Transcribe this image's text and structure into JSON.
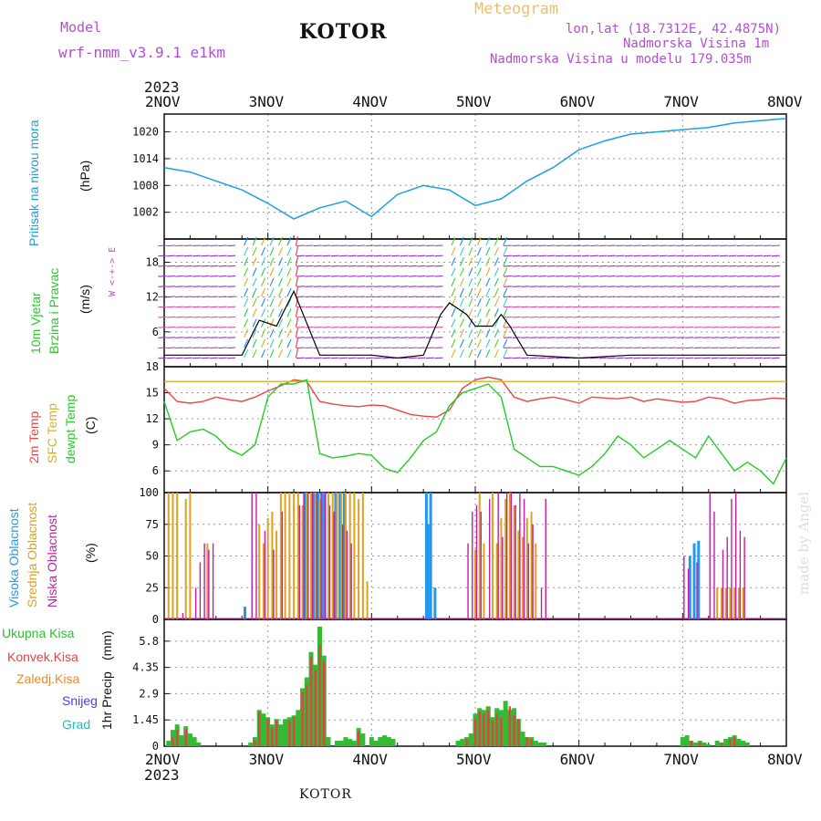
{
  "header": {
    "model_label": "Model",
    "model_name": "wrf-nmm_v3.9.1 e1km",
    "station": "KOTOR",
    "meteogram": "Meteogram",
    "lonlat": "lon,lat (18.7312E, 42.4875N)",
    "altitude": "Nadmorska Visina 1m",
    "model_altitude": "Nadmorska Visina u modelu 179.035m",
    "footer_station": "KOTOR",
    "watermark": "made by Angel"
  },
  "colors": {
    "pressure": "#1ca0e0",
    "temp2m": "#ee4444",
    "sfc": "#d8b020",
    "dewpt": "#22cc22",
    "high": "#2299ee",
    "mid": "#e0a020",
    "low": "#c020a0",
    "total": "#33bb33",
    "conv": "#dd4444",
    "frozen": "#ee8833",
    "snow": "#4444dd",
    "grad": "#22bbbb",
    "violet": "#b050d0"
  },
  "chart_data": [
    {
      "type": "line",
      "panel": "pressure",
      "ylabel": "Pritisak na nivou mora",
      "unit": "(hPa)",
      "ylim": [
        996,
        1024
      ],
      "yticks": [
        1002,
        1008,
        1014,
        1020
      ],
      "x_hours": [
        0,
        6,
        12,
        18,
        24,
        30,
        36,
        42,
        48,
        54,
        60,
        66,
        72,
        78,
        84,
        90,
        96,
        102,
        108,
        114,
        120,
        126,
        132,
        138,
        144
      ],
      "series": [
        {
          "values": [
            1012,
            1011,
            1009,
            1007,
            1004,
            1000.5,
            1003,
            1004.5,
            1001,
            1006,
            1008,
            1007,
            1003.5,
            1005,
            1009,
            1012,
            1016,
            1018,
            1019.5,
            1020,
            1020.5,
            1021,
            1022,
            1022.5,
            1023
          ]
        }
      ]
    },
    {
      "type": "line",
      "panel": "wind",
      "ylabel": "10m Vjetar Brzina i Pravac",
      "unit": "(m/s)",
      "ylim": [
        0,
        22
      ],
      "yticks": [
        6,
        12,
        18
      ],
      "compass": "W  <-+->  E",
      "x_hours": [
        0,
        6,
        12,
        18,
        20,
        22,
        26,
        30,
        36,
        40,
        48,
        54,
        60,
        64,
        66,
        70,
        72,
        76,
        78,
        80,
        84,
        96,
        108,
        120,
        132,
        144
      ],
      "series": [
        {
          "values": [
            2,
            2,
            2,
            2,
            5,
            8,
            7,
            13,
            2,
            2,
            2,
            1.5,
            2,
            9,
            11,
            9,
            7,
            7,
            9,
            7,
            2,
            1.5,
            2,
            2,
            2,
            2
          ]
        }
      ]
    },
    {
      "type": "line",
      "panel": "temperature",
      "ylabel": "2m Temp / SFC Temp / dewpt Temp",
      "unit": "(C)",
      "ylim": [
        3.5,
        18
      ],
      "yticks": [
        6,
        9,
        12,
        15,
        18
      ],
      "x_hours": [
        0,
        3,
        6,
        9,
        12,
        15,
        18,
        21,
        24,
        27,
        30,
        33,
        36,
        39,
        42,
        45,
        48,
        51,
        54,
        57,
        60,
        63,
        66,
        69,
        72,
        75,
        78,
        81,
        84,
        87,
        90,
        93,
        96,
        99,
        102,
        105,
        108,
        111,
        114,
        117,
        120,
        123,
        126,
        129,
        132,
        135,
        138,
        141,
        144
      ],
      "series": [
        {
          "name": "2m Temp",
          "values": [
            15.5,
            14,
            13.8,
            14,
            14.5,
            14.2,
            14,
            14.5,
            15.2,
            15.8,
            16.5,
            16.3,
            14,
            13.7,
            13.5,
            13.4,
            13.6,
            13.5,
            13,
            12.5,
            12.3,
            12.2,
            13,
            15.5,
            16.5,
            16.8,
            16.5,
            14.5,
            14,
            14.3,
            14.5,
            14.2,
            13.8,
            14.5,
            14.4,
            14.3,
            14.5,
            14,
            14.3,
            14.1,
            13.9,
            14,
            14.5,
            14.3,
            13.8,
            14.1,
            14.2,
            14.4,
            14.3
          ]
        },
        {
          "name": "SFC Temp",
          "values": [
            16.3,
            16.3,
            16.3,
            16.3,
            16.3,
            16.3,
            16.3,
            16.3,
            16.3,
            16.3,
            16.3,
            16.3,
            16.3,
            16.3,
            16.3,
            16.3,
            16.3,
            16.3,
            16.3,
            16.3,
            16.3,
            16.3,
            16.3,
            16.3,
            16.3,
            16.3,
            16.3,
            16.3,
            16.3,
            16.3,
            16.3,
            16.3,
            16.3,
            16.3,
            16.3,
            16.3,
            16.3,
            16.3,
            16.3,
            16.3,
            16.3,
            16.3,
            16.3,
            16.3,
            16.3,
            16.3,
            16.3,
            16.3,
            16.3
          ]
        },
        {
          "name": "dewpt Temp",
          "values": [
            14,
            9.5,
            10.5,
            10.8,
            10,
            8.5,
            7.8,
            9,
            14.5,
            16,
            16,
            16.5,
            8,
            7.5,
            7.7,
            8,
            7.8,
            6.3,
            5.8,
            7.5,
            9.5,
            10.5,
            13.5,
            15,
            15.5,
            16,
            14.5,
            8.5,
            7.5,
            6.5,
            6.5,
            6,
            5.5,
            6.5,
            8,
            10,
            9,
            7.5,
            8.5,
            9.5,
            8.5,
            7.5,
            10,
            8,
            6,
            7,
            6,
            4.5,
            7.5
          ]
        }
      ]
    },
    {
      "type": "bar",
      "panel": "clouds",
      "ylabel": "Visoka Oblacnost / Srednja Oblacnost / Niska Oblacnost",
      "unit": "(%)",
      "ylim": [
        0,
        100
      ],
      "yticks": [
        0,
        25,
        50,
        75,
        100
      ],
      "series": [
        {
          "name": "Visoka Oblacnost",
          "x_hours": [
            19,
            33,
            35,
            36,
            37,
            37.5,
            40,
            41,
            42,
            61,
            61.5,
            62,
            63,
            122,
            123,
            124
          ],
          "values": [
            10,
            100,
            100,
            100,
            100,
            100,
            100,
            100,
            100,
            100,
            75,
            100,
            25,
            50,
            60,
            62
          ]
        },
        {
          "name": "Srednja Oblacnost",
          "x_hours": [
            1,
            2,
            3,
            5,
            6,
            10,
            22,
            23,
            24,
            25,
            26,
            27,
            28,
            29,
            30,
            31,
            32,
            33,
            34,
            35,
            36,
            38,
            39,
            40,
            41,
            42,
            43,
            44,
            45,
            46,
            47,
            72,
            73,
            74,
            76,
            77,
            78,
            79,
            80,
            81,
            82,
            83,
            84,
            85,
            86,
            128,
            129,
            130,
            131,
            132,
            133,
            134
          ],
          "values": [
            100,
            100,
            100,
            95,
            100,
            60,
            75,
            60,
            80,
            85,
            70,
            100,
            100,
            100,
            100,
            100,
            90,
            100,
            100,
            100,
            95,
            100,
            100,
            100,
            100,
            100,
            100,
            100,
            95,
            100,
            30,
            55,
            100,
            60,
            100,
            60,
            80,
            95,
            100,
            90,
            70,
            65,
            80,
            85,
            60,
            25,
            25,
            25,
            25,
            25,
            25,
            25
          ]
        },
        {
          "name": "Niska Oblacnost",
          "x_hours": [
            4,
            7,
            8,
            9,
            10,
            11,
            20,
            21,
            23,
            25,
            27,
            31,
            32,
            33,
            34,
            35,
            36,
            37,
            38,
            39,
            41,
            42,
            43,
            70,
            71,
            72,
            73,
            75,
            77,
            78,
            79,
            80,
            81,
            82,
            83,
            84,
            85,
            87,
            88,
            120,
            121,
            123,
            126,
            127,
            129,
            130,
            131,
            132,
            133,
            134
          ],
          "values": [
            5,
            25,
            45,
            60,
            55,
            60,
            100,
            100,
            70,
            55,
            85,
            90,
            100,
            100,
            100,
            100,
            100,
            100,
            90,
            85,
            75,
            70,
            60,
            60,
            85,
            90,
            85,
            95,
            100,
            65,
            100,
            100,
            90,
            100,
            95,
            60,
            75,
            25,
            95,
            50,
            40,
            45,
            100,
            85,
            55,
            65,
            95,
            100,
            70,
            65
          ]
        }
      ]
    },
    {
      "type": "bar",
      "panel": "precip",
      "ylabel": "1hr Precip",
      "unit": "(mm)",
      "ylim": [
        0,
        7.0
      ],
      "yticks": [
        0,
        1.45,
        2.9,
        4.35,
        5.8
      ],
      "series_names": [
        "Ukupna Kisa",
        "Konvek.Kisa",
        "Zaledj.Kisa",
        "Snijeg",
        "Grad"
      ],
      "series": [
        {
          "name": "Ukupna Kisa",
          "x_hours": [
            1,
            2,
            3,
            4,
            5,
            6,
            7,
            8,
            20,
            21,
            22,
            23,
            24,
            25,
            26,
            27,
            28,
            29,
            30,
            31,
            32,
            33,
            34,
            35,
            36,
            37,
            38,
            40,
            41,
            42,
            43,
            44,
            45,
            46,
            48,
            49,
            50,
            51,
            52,
            53,
            68,
            69,
            70,
            71,
            72,
            73,
            74,
            75,
            76,
            77,
            78,
            79,
            80,
            81,
            82,
            83,
            84,
            85,
            86,
            87,
            88,
            120,
            121,
            122,
            123,
            124,
            125,
            126,
            128,
            129,
            130,
            131,
            132,
            133,
            134,
            135
          ],
          "values": [
            0.3,
            0.9,
            1.2,
            0.6,
            1.1,
            0.7,
            0.5,
            0.2,
            0.2,
            0.5,
            2.0,
            1.8,
            1.6,
            1.2,
            1.5,
            1.2,
            1.5,
            1.6,
            1.7,
            2.0,
            3.2,
            3.8,
            5.2,
            4.5,
            6.6,
            5.0,
            0.5,
            0.3,
            0.3,
            0.5,
            0.4,
            0.3,
            1.0,
            0.7,
            0.5,
            0.3,
            0.5,
            0.6,
            0.5,
            0.4,
            0.3,
            0.4,
            0.5,
            0.7,
            1.8,
            2.1,
            2.0,
            2.2,
            1.6,
            2.1,
            2.0,
            2.5,
            2.0,
            2.1,
            1.5,
            0.8,
            0.5,
            0.5,
            0.3,
            0.2,
            0.2,
            0.5,
            0.6,
            0.3,
            0.2,
            0.3,
            0.2,
            0.1,
            0.3,
            0.2,
            0.4,
            0.5,
            0.6,
            0.4,
            0.3,
            0.2
          ]
        },
        {
          "name": "Konvek.Kisa",
          "x_hours": [
            2,
            3,
            5,
            21,
            22,
            24,
            25,
            26,
            29,
            30,
            32,
            33,
            34,
            35,
            36,
            37,
            45,
            70,
            72,
            73,
            74,
            75,
            76,
            77,
            78,
            80,
            81,
            82,
            84,
            85,
            122,
            124,
            129,
            131,
            132
          ],
          "values": [
            0.5,
            0.9,
            0.9,
            0.3,
            1.9,
            1.5,
            1.0,
            1.4,
            1.4,
            1.6,
            3.0,
            3.4,
            4.9,
            4.2,
            5.6,
            4.7,
            0.8,
            0.4,
            1.5,
            1.9,
            1.8,
            2.0,
            1.4,
            1.8,
            1.6,
            2.2,
            1.7,
            1.5,
            0.5,
            0.4,
            0.3,
            0.2,
            0.2,
            0.4,
            0.5
          ]
        }
      ]
    }
  ],
  "x_axis": {
    "year": "2023",
    "ticks": [
      "2NOV",
      "3NOV",
      "4NOV",
      "5NOV",
      "6NOV",
      "7NOV",
      "8NOV"
    ]
  }
}
